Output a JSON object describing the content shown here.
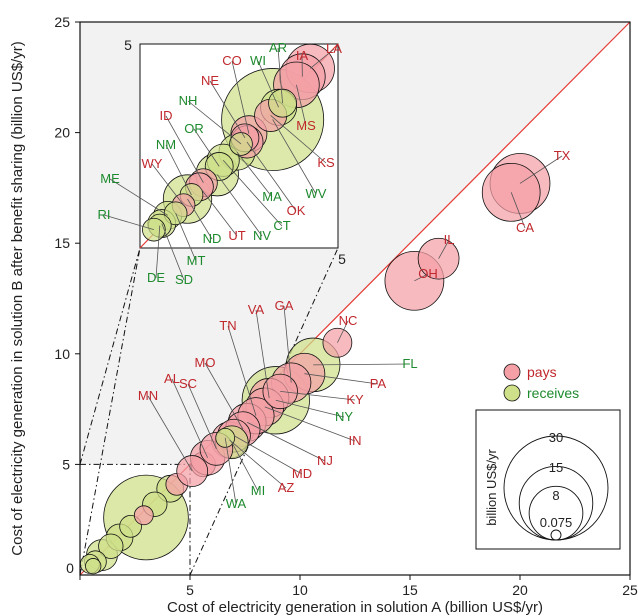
{
  "chart_data": {
    "type": "scatter",
    "subtype": "bubble",
    "xlabel": "Cost of electricity generation in solution A (billion US$/yr)",
    "ylabel": "Cost of electricity generation in solution B after benefit sharing (billion US$/yr)",
    "xlim": [
      0,
      25
    ],
    "ylim": [
      0,
      25
    ],
    "x_ticks": [
      "0",
      "5",
      "10",
      "15",
      "20",
      "25"
    ],
    "y_ticks": [
      "5",
      "10",
      "15",
      "20",
      "25"
    ],
    "grid": false,
    "diagonal_line": true,
    "colors": {
      "pays": "#f4a0a6",
      "receives": "#cfe08a",
      "pays_label": "#c0282d",
      "receives_label": "#1e8a2e",
      "diagonal": "#e53935",
      "inset_bg": "#f2f2f2"
    },
    "legend": {
      "position": "lower-right",
      "entries": [
        {
          "label": "pays",
          "group": "pays"
        },
        {
          "label": "receives",
          "group": "receives"
        }
      ]
    },
    "size_legend": {
      "title": "billion US$/yr",
      "values": [
        {
          "label": "30",
          "value": 30
        },
        {
          "label": "15",
          "value": 15
        },
        {
          "label": "8",
          "value": 8
        },
        {
          "label": "0.075",
          "value": 0.075
        }
      ]
    },
    "inset": {
      "xlim": [
        0,
        5
      ],
      "ylim": [
        0,
        5
      ],
      "tick_min": "0",
      "tick_max": "5"
    },
    "states": [
      {
        "name": "TX",
        "group": "pays",
        "x": 20.0,
        "y": 17.7,
        "size": 30
      },
      {
        "name": "CA",
        "group": "pays",
        "x": 19.6,
        "y": 17.3,
        "size": 28
      },
      {
        "name": "IL",
        "group": "pays",
        "x": 16.3,
        "y": 14.3,
        "size": 14
      },
      {
        "name": "OH",
        "group": "pays",
        "x": 15.2,
        "y": 13.3,
        "size": 29
      },
      {
        "name": "NC",
        "group": "pays",
        "x": 11.7,
        "y": 10.5,
        "size": 7
      },
      {
        "name": "FL",
        "group": "receives",
        "x": 10.6,
        "y": 9.5,
        "size": 24
      },
      {
        "name": "PA",
        "group": "pays",
        "x": 10.2,
        "y": 9.1,
        "size": 14
      },
      {
        "name": "GA",
        "group": "pays",
        "x": 9.6,
        "y": 8.7,
        "size": 13
      },
      {
        "name": "KY",
        "group": "pays",
        "x": 9.1,
        "y": 8.3,
        "size": 10
      },
      {
        "name": "VA",
        "group": "pays",
        "x": 8.6,
        "y": 8.0,
        "size": 13
      },
      {
        "name": "NY",
        "group": "receives",
        "x": 8.9,
        "y": 7.9,
        "size": 38
      },
      {
        "name": "IN",
        "group": "pays",
        "x": 8.4,
        "y": 7.6,
        "size": 12
      },
      {
        "name": "TN",
        "group": "pays",
        "x": 8.0,
        "y": 7.2,
        "size": 11
      },
      {
        "name": "NJ",
        "group": "pays",
        "x": 7.6,
        "y": 6.9,
        "size": 12
      },
      {
        "name": "MO",
        "group": "pays",
        "x": 7.4,
        "y": 6.6,
        "size": 10
      },
      {
        "name": "MD",
        "group": "pays",
        "x": 7.0,
        "y": 6.3,
        "size": 9
      },
      {
        "name": "AZ",
        "group": "pays",
        "x": 6.8,
        "y": 6.1,
        "size": 11
      },
      {
        "name": "MI",
        "group": "receives",
        "x": 6.9,
        "y": 6.0,
        "size": 9
      },
      {
        "name": "WA",
        "group": "receives",
        "x": 6.6,
        "y": 6.2,
        "size": 3
      },
      {
        "name": "SC",
        "group": "pays",
        "x": 6.2,
        "y": 5.7,
        "size": 9
      },
      {
        "name": "AL",
        "group": "pays",
        "x": 5.8,
        "y": 5.3,
        "size": 10
      },
      {
        "name": "MN",
        "group": "pays",
        "x": 5.1,
        "y": 4.7,
        "size": 8
      }
    ],
    "outside_bubbles": [
      {
        "group": "pays",
        "x": 5.6,
        "y": 5.0,
        "size": 5
      },
      {
        "group": "receives",
        "x": 4.1,
        "y": 3.9,
        "size": 6
      },
      {
        "group": "pays",
        "x": 4.4,
        "y": 4.1,
        "size": 4
      },
      {
        "group": "receives",
        "x": 3.4,
        "y": 3.2,
        "size": 5
      },
      {
        "group": "pays",
        "x": 2.9,
        "y": 2.7,
        "size": 3
      },
      {
        "group": "receives",
        "x": 3.0,
        "y": 2.6,
        "size": 60
      },
      {
        "group": "receives",
        "x": 2.3,
        "y": 2.2,
        "size": 4
      },
      {
        "group": "receives",
        "x": 1.8,
        "y": 1.7,
        "size": 6
      },
      {
        "group": "receives",
        "x": 1.4,
        "y": 1.3,
        "size": 5
      },
      {
        "group": "receives",
        "x": 1.0,
        "y": 0.9,
        "size": 8
      },
      {
        "group": "receives",
        "x": 0.7,
        "y": 0.6,
        "size": 4
      },
      {
        "group": "receives",
        "x": 0.45,
        "y": 0.5,
        "size": 3
      },
      {
        "group": "receives",
        "x": 0.6,
        "y": 0.4,
        "size": 2
      }
    ],
    "inset_states": [
      {
        "name": "LA",
        "group": "pays",
        "x": 4.3,
        "y": 4.4,
        "size": 9
      },
      {
        "name": "IA",
        "group": "pays",
        "x": 4.1,
        "y": 4.2,
        "size": 8
      },
      {
        "name": "MS",
        "group": "pays",
        "x": 3.95,
        "y": 4.0,
        "size": 8
      },
      {
        "name": "AR",
        "group": "receives",
        "x": 3.6,
        "y": 3.55,
        "size": 3
      },
      {
        "name": "WI",
        "group": "receives",
        "x": 3.5,
        "y": 3.45,
        "size": 5
      },
      {
        "name": "KS",
        "group": "pays",
        "x": 3.3,
        "y": 3.25,
        "size": 4
      },
      {
        "name": "WV",
        "group": "receives",
        "x": 3.35,
        "y": 3.15,
        "size": 40
      },
      {
        "name": "CO",
        "group": "pays",
        "x": 2.75,
        "y": 2.8,
        "size": 5
      },
      {
        "name": "NE",
        "group": "pays",
        "x": 2.65,
        "y": 2.7,
        "size": 3
      },
      {
        "name": "OK",
        "group": "pays",
        "x": 2.7,
        "y": 2.6,
        "size": 4
      },
      {
        "name": "NH",
        "group": "receives",
        "x": 2.55,
        "y": 2.55,
        "size": 2
      },
      {
        "name": "MA",
        "group": "receives",
        "x": 2.45,
        "y": 2.35,
        "size": 5
      },
      {
        "name": "CT",
        "group": "receives",
        "x": 2.1,
        "y": 2.15,
        "size": 4
      },
      {
        "name": "OR",
        "group": "receives",
        "x": 2.0,
        "y": 2.0,
        "size": 3
      },
      {
        "name": "NV",
        "group": "receives",
        "x": 1.95,
        "y": 1.8,
        "size": 7
      },
      {
        "name": "ID",
        "group": "pays",
        "x": 1.6,
        "y": 1.6,
        "size": 3
      },
      {
        "name": "UT",
        "group": "pays",
        "x": 1.5,
        "y": 1.5,
        "size": 3
      },
      {
        "name": "NM",
        "group": "receives",
        "x": 1.3,
        "y": 1.3,
        "size": 2
      },
      {
        "name": "ND",
        "group": "receives",
        "x": 1.2,
        "y": 1.2,
        "size": 9
      },
      {
        "name": "WY",
        "group": "pays",
        "x": 1.1,
        "y": 1.05,
        "size": 2
      },
      {
        "name": "MT",
        "group": "receives",
        "x": 0.9,
        "y": 0.85,
        "size": 2
      },
      {
        "name": "ME",
        "group": "receives",
        "x": 0.7,
        "y": 0.8,
        "size": 3
      },
      {
        "name": "SD",
        "group": "receives",
        "x": 0.55,
        "y": 0.6,
        "size": 3
      },
      {
        "name": "DE",
        "group": "receives",
        "x": 0.5,
        "y": 0.55,
        "size": 2
      },
      {
        "name": "RI",
        "group": "receives",
        "x": 0.35,
        "y": 0.45,
        "size": 2
      }
    ]
  }
}
